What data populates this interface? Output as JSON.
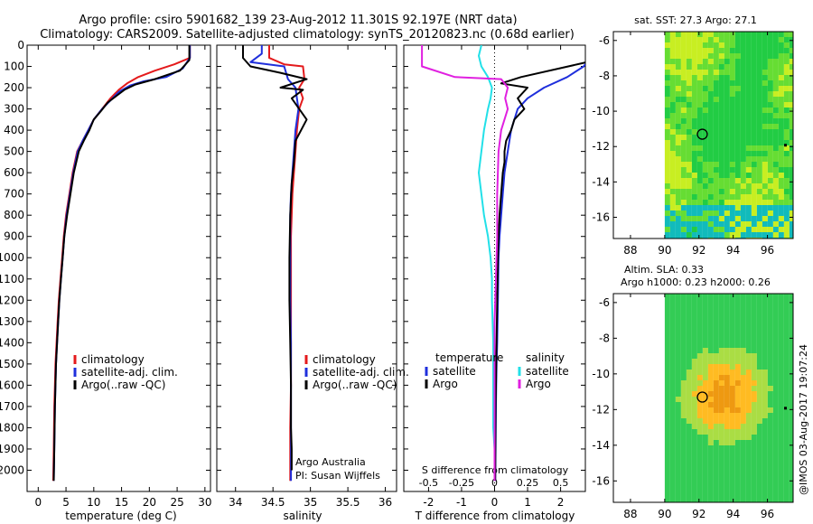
{
  "figure": {
    "title_line1": "Argo profile: csiro 5901682_139 23-Aug-2012 11.301S 92.197E (NRT data)",
    "title_line2": "Climatology: CARS2009. Satellite-adjusted climatology: synTS_20120823.nc (0.68d earlier)",
    "footer_stamp": "@IMOS 03-Aug-2017 19:07:24",
    "credit_line1": "Argo Australia",
    "credit_line2": "PI: Susan Wijffels"
  },
  "colors": {
    "climatology": "#e41a1c",
    "satellite": "#1f2fdc",
    "argo": "#000000",
    "salinity_satellite": "#22e0e8",
    "salinity_argo": "#e020e0"
  },
  "chart_data": [
    {
      "type": "line",
      "id": "temperature",
      "xlabel": "temperature (deg C)",
      "ylabel": "",
      "xlim": [
        -2,
        31
      ],
      "ylim": [
        2100,
        0
      ],
      "xticks": [
        0,
        5,
        10,
        15,
        20,
        25,
        30
      ],
      "yticks": [
        0,
        100,
        200,
        300,
        400,
        500,
        600,
        700,
        800,
        900,
        1000,
        1100,
        1200,
        1300,
        1400,
        1500,
        1600,
        1700,
        1800,
        1900,
        2000
      ],
      "legend": [
        "climatology",
        "satellite-adj. clim.",
        "Argo(..raw -QC)"
      ],
      "legend_position": "bottom-center",
      "series": [
        {
          "name": "climatology",
          "color": "#e41a1c",
          "x": [
            27.3,
            27.3,
            24.5,
            21,
            18,
            16,
            14.5,
            13,
            11.5,
            10,
            9,
            8,
            7,
            6.2,
            5.6,
            5,
            4.6,
            4.3,
            4.0,
            3.7,
            3.5,
            3.3,
            3.1,
            3.0,
            2.9,
            2.8,
            2.7
          ],
          "y": [
            0,
            60,
            90,
            120,
            150,
            180,
            210,
            250,
            300,
            350,
            400,
            450,
            500,
            600,
            700,
            800,
            900,
            1000,
            1100,
            1200,
            1300,
            1400,
            1500,
            1600,
            1700,
            1900,
            2050
          ]
        },
        {
          "name": "satellite-adj. clim.",
          "color": "#1f2fdc",
          "x": [
            27.3,
            27.3,
            26,
            23,
            19,
            16.5,
            14.5,
            13,
            11.5,
            10,
            9,
            8,
            7.1,
            6.3,
            5.7,
            5.1,
            4.7,
            4.4,
            4.1,
            3.8,
            3.6,
            3.4,
            3.2,
            3.1,
            3.0,
            2.9,
            2.8
          ],
          "y": [
            0,
            60,
            110,
            150,
            170,
            190,
            220,
            260,
            300,
            350,
            400,
            450,
            500,
            600,
            700,
            800,
            900,
            1000,
            1100,
            1200,
            1300,
            1400,
            1500,
            1600,
            1700,
            1900,
            2050
          ]
        },
        {
          "name": "Argo(..raw -QC)",
          "color": "#000000",
          "x": [
            27.2,
            27.2,
            25.5,
            21,
            17.5,
            15.5,
            14,
            12.5,
            11.3,
            10,
            9.2,
            8.2,
            7.3,
            6.4,
            5.8,
            5.2,
            4.7,
            4.4,
            4.1,
            3.8,
            3.6,
            3.4,
            3.2,
            3.1,
            3.0,
            2.9,
            2.8
          ],
          "y": [
            0,
            70,
            120,
            160,
            185,
            210,
            240,
            270,
            310,
            350,
            400,
            450,
            500,
            600,
            700,
            800,
            900,
            1000,
            1100,
            1200,
            1300,
            1400,
            1500,
            1600,
            1700,
            1900,
            2050
          ]
        }
      ]
    },
    {
      "type": "line",
      "id": "salinity",
      "xlabel": "salinity",
      "ylabel": "",
      "xlim": [
        33.75,
        36.15
      ],
      "ylim": [
        2100,
        0
      ],
      "xticks": [
        34,
        34.5,
        35,
        35.5,
        36
      ],
      "xticklabels": [
        "34",
        "34.5",
        "35",
        "35.5",
        "36"
      ],
      "legend": [
        "climatology",
        "satellite-adj. clim.",
        "Argo(..raw -QC)"
      ],
      "legend_position": "bottom-center",
      "series": [
        {
          "name": "climatology",
          "color": "#e41a1c",
          "x": [
            34.45,
            34.45,
            34.65,
            34.9,
            34.92,
            34.85,
            34.9,
            34.85,
            34.82,
            34.8,
            34.78,
            34.76,
            34.75,
            34.74,
            34.74,
            34.74,
            34.74,
            34.74,
            34.73,
            34.73
          ],
          "y": [
            0,
            60,
            90,
            100,
            160,
            200,
            250,
            300,
            400,
            500,
            600,
            700,
            800,
            900,
            1000,
            1200,
            1400,
            1600,
            1800,
            2050
          ]
        },
        {
          "name": "satellite-adj. clim.",
          "color": "#1f2fdc",
          "x": [
            34.35,
            34.35,
            34.2,
            34.65,
            34.7,
            34.8,
            34.82,
            34.84,
            34.8,
            34.78,
            34.76,
            34.74,
            34.73,
            34.73,
            34.73,
            34.73,
            34.74,
            34.74,
            34.74,
            34.74
          ],
          "y": [
            0,
            40,
            80,
            100,
            160,
            200,
            250,
            300,
            400,
            500,
            600,
            700,
            800,
            900,
            1000,
            1200,
            1400,
            1600,
            1800,
            2050
          ]
        },
        {
          "name": "Argo(..raw -QC)",
          "color": "#000000",
          "x": [
            34.1,
            34.1,
            34.2,
            34.6,
            34.95,
            34.6,
            34.9,
            34.75,
            34.85,
            34.95,
            34.8,
            34.78,
            34.75,
            34.73,
            34.72,
            34.72,
            34.73,
            34.74,
            34.74,
            34.75,
            34.75
          ],
          "y": [
            0,
            60,
            100,
            130,
            160,
            200,
            210,
            250,
            300,
            350,
            450,
            550,
            650,
            800,
            1000,
            1200,
            1400,
            1600,
            1800,
            1900,
            2000
          ]
        }
      ]
    },
    {
      "type": "line",
      "id": "difference",
      "xlabel": "T difference from climatology",
      "xlabel_top": "S difference from climatology",
      "ylabel": "",
      "xlim": [
        -2.75,
        2.75
      ],
      "ylim": [
        2100,
        0
      ],
      "xticks": [
        -2,
        -1,
        0,
        1,
        2
      ],
      "sticks": [
        -0.5,
        -0.25,
        0,
        0.25,
        0.5
      ],
      "sticklabels": [
        "-0.5",
        "-0.25",
        "0",
        "0.25",
        "0.5"
      ],
      "s_scale_factor": 4,
      "legend_temperature_title": "temperature",
      "legend_salinity_title": "salinity",
      "legend_temperature": [
        "satellite",
        "Argo"
      ],
      "legend_salinity": [
        "satellite",
        "Argo"
      ],
      "legend_position": "bottom",
      "series": [
        {
          "name": "temperature satellite",
          "color": "#1f2fdc",
          "x": [
            2.8,
            2.8,
            2.7,
            2.2,
            1.5,
            1.0,
            0.7,
            0.6,
            0.5,
            0.45,
            0.4,
            0.35,
            0.3,
            0.25,
            0.2,
            0.15,
            0.12,
            0.1,
            0.08,
            0.06,
            0.05,
            0.04,
            0.03,
            0.02
          ],
          "y": [
            0,
            80,
            100,
            150,
            200,
            250,
            300,
            350,
            400,
            450,
            500,
            550,
            600,
            700,
            800,
            900,
            1000,
            1200,
            1400,
            1500,
            1600,
            1700,
            1900,
            2050
          ]
        },
        {
          "name": "temperature Argo",
          "color": "#000000",
          "x": [
            2.8,
            2.8,
            0.8,
            0.2,
            1.0,
            0.7,
            0.9,
            0.6,
            0.5,
            0.35,
            0.3,
            0.3,
            0.25,
            0.2,
            0.15,
            0.12,
            0.1,
            0.08,
            0.06,
            0.05,
            0.04,
            0.03,
            0.02
          ],
          "y": [
            0,
            80,
            150,
            180,
            200,
            250,
            300,
            350,
            400,
            450,
            500,
            550,
            600,
            700,
            800,
            900,
            1000,
            1200,
            1400,
            1500,
            1600,
            1700,
            2050
          ]
        },
        {
          "name": "salinity satellite",
          "color": "#22e0e8",
          "x": [
            -0.1,
            -0.12,
            -0.1,
            -0.05,
            -0.02,
            -0.03,
            -0.05,
            -0.08,
            -0.1,
            -0.12,
            -0.1,
            -0.08,
            -0.05,
            -0.03,
            -0.02,
            -0.02,
            -0.01,
            -0.01,
            -0.01,
            0.0,
            0.0
          ],
          "y": [
            0,
            50,
            100,
            150,
            200,
            250,
            300,
            400,
            500,
            600,
            700,
            800,
            900,
            1000,
            1100,
            1200,
            1400,
            1600,
            1800,
            1900,
            2050
          ]
        },
        {
          "name": "salinity Argo",
          "color": "#e020e0",
          "x": [
            -0.55,
            -0.55,
            -0.3,
            0.05,
            0.1,
            0.08,
            0.1,
            0.05,
            0.03,
            0.02,
            0.02,
            0.01,
            0.0,
            0.0,
            0.0,
            0.0
          ],
          "y": [
            0,
            100,
            150,
            160,
            200,
            250,
            300,
            400,
            500,
            700,
            900,
            1100,
            1300,
            1600,
            1800,
            2050
          ]
        }
      ]
    },
    {
      "type": "heatmap",
      "id": "sst",
      "title": "sat. SST: 27.3 Argo: 27.1",
      "xlim": [
        87,
        97.5
      ],
      "ylim": [
        -17.2,
        -5.5
      ],
      "xticks": [
        88,
        90,
        92,
        94,
        96
      ],
      "yticks": [
        -6,
        -8,
        -10,
        -12,
        -14,
        -16
      ],
      "data_xrange": [
        90,
        97.5
      ],
      "marker": {
        "lon": 92.197,
        "lat": -11.301
      },
      "colors": [
        "#22cc44",
        "#66dd33",
        "#c8ee22",
        "#11bbbb"
      ]
    },
    {
      "type": "heatmap",
      "id": "sla",
      "title_line1": "Altim. SLA: 0.33",
      "title_line2": "Argo h1000: 0.23 h2000: 0.26",
      "xlim": [
        87,
        97.5
      ],
      "ylim": [
        -17.2,
        -5.5
      ],
      "xticks": [
        88,
        90,
        92,
        94,
        96
      ],
      "yticks": [
        -6,
        -8,
        -10,
        -12,
        -14,
        -16
      ],
      "data_xrange": [
        90,
        97.5
      ],
      "marker": {
        "lon": 92.197,
        "lat": -11.301
      },
      "colors": [
        "#33cc55",
        "#aadd44",
        "#ffbb22",
        "#ee9911"
      ]
    }
  ]
}
